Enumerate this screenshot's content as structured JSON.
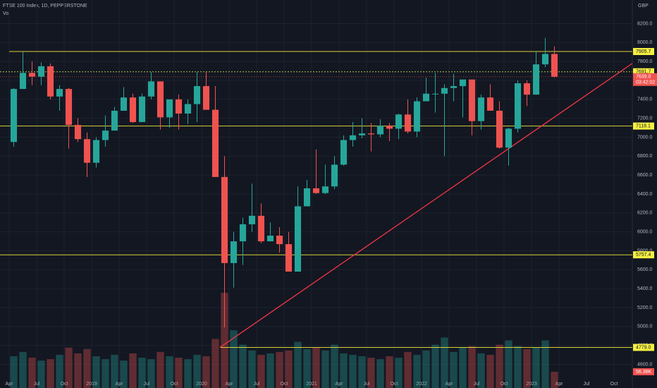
{
  "chart_data": {
    "type": "candlestick",
    "title": "FTSE 100 Index, 1D, PEPPERSTONE",
    "volume_title": "Vol",
    "currency": "GBP",
    "x": [
      "2018-04",
      "2018-05",
      "2018-06",
      "2018-07",
      "2018-08",
      "2018-09",
      "2018-10",
      "2018-11",
      "2018-12",
      "2019-01",
      "2019-02",
      "2019-03",
      "2019-04",
      "2019-05",
      "2019-06",
      "2019-07",
      "2019-08",
      "2019-09",
      "2019-10",
      "2019-11",
      "2019-12",
      "2020-01",
      "2020-02",
      "2020-03",
      "2020-04",
      "2020-05",
      "2020-06",
      "2020-07",
      "2020-08",
      "2020-09",
      "2020-10",
      "2020-11",
      "2020-12",
      "2021-01",
      "2021-02",
      "2021-03",
      "2021-04",
      "2021-05",
      "2021-06",
      "2021-07",
      "2021-08",
      "2021-09",
      "2021-10",
      "2021-11",
      "2021-12",
      "2022-01",
      "2022-02",
      "2022-03",
      "2022-04",
      "2022-05",
      "2022-06",
      "2022-07",
      "2022-08",
      "2022-09",
      "2022-10",
      "2022-11",
      "2022-12",
      "2023-01",
      "2023-02",
      "2023-03"
    ],
    "open": [
      6950,
      7510,
      7680,
      7640,
      7750,
      7430,
      7510,
      7130,
      6980,
      6730,
      6970,
      7070,
      7280,
      7420,
      7160,
      7430,
      7590,
      7210,
      7400,
      7250,
      7350,
      7540,
      7290,
      6580,
      5670,
      5900,
      6080,
      6170,
      5900,
      5960,
      5870,
      5580,
      6270,
      6460,
      6410,
      6480,
      6710,
      6970,
      7020,
      7040,
      7030,
      7120,
      7090,
      7240,
      7060,
      7380,
      7460,
      7460,
      7520,
      7540,
      7610,
      7170,
      7420,
      7280,
      6890,
      7090,
      7570,
      7450,
      7770,
      7880
    ],
    "high": [
      7520,
      7900,
      7800,
      7790,
      7780,
      7550,
      7520,
      7200,
      7050,
      7000,
      7230,
      7320,
      7530,
      7460,
      7460,
      7690,
      7590,
      7400,
      7450,
      7400,
      7690,
      7690,
      7540,
      6800,
      6000,
      6150,
      6510,
      6300,
      6100,
      6050,
      6000,
      6480,
      6550,
      6870,
      6710,
      6800,
      7020,
      7160,
      7200,
      7150,
      7190,
      7150,
      7250,
      7400,
      7420,
      7630,
      7680,
      7560,
      7670,
      7600,
      7600,
      7450,
      7560,
      7380,
      7100,
      7600,
      7600,
      7900,
      8050,
      7960
    ],
    "low": [
      6900,
      7510,
      7550,
      7550,
      7400,
      7280,
      6880,
      6950,
      6580,
      6680,
      6900,
      7080,
      7280,
      7150,
      7160,
      7400,
      7080,
      7100,
      7080,
      7140,
      7160,
      7290,
      6580,
      4990,
      5410,
      5650,
      6000,
      5880,
      5900,
      5780,
      5580,
      5580,
      6270,
      6400,
      6400,
      6450,
      6700,
      6900,
      6990,
      6850,
      7000,
      6960,
      6980,
      7040,
      7000,
      7380,
      7260,
      6800,
      7380,
      7210,
      7020,
      7080,
      7280,
      6880,
      6700,
      7050,
      7330,
      7450,
      7740,
      7630
    ],
    "close": [
      7510,
      7680,
      7640,
      7750,
      7430,
      7510,
      7130,
      6980,
      6730,
      6970,
      7070,
      7280,
      7420,
      7160,
      7430,
      7590,
      7210,
      7400,
      7250,
      7350,
      7540,
      7290,
      6580,
      5670,
      5900,
      6080,
      6170,
      5900,
      5960,
      5870,
      5580,
      6270,
      6460,
      6410,
      6480,
      6710,
      6970,
      7020,
      7040,
      7030,
      7120,
      7090,
      7240,
      7060,
      7380,
      7460,
      7460,
      7520,
      7540,
      7610,
      7170,
      7420,
      7280,
      6890,
      7090,
      7570,
      7450,
      7770,
      7880,
      7639
    ],
    "volume": [
      110,
      125,
      105,
      95,
      100,
      115,
      140,
      120,
      135,
      110,
      100,
      115,
      95,
      120,
      105,
      100,
      125,
      110,
      105,
      100,
      115,
      110,
      170,
      330,
      200,
      150,
      130,
      115,
      120,
      125,
      130,
      160,
      135,
      140,
      130,
      150,
      120,
      115,
      110,
      105,
      100,
      110,
      105,
      125,
      115,
      130,
      150,
      175,
      125,
      140,
      145,
      120,
      115,
      150,
      165,
      145,
      135,
      140,
      165,
      56.38
    ],
    "last_volume": {
      "value": 56.38,
      "label": "56.38K"
    },
    "up_color": "#26a69a",
    "down_color": "#ef5350",
    "xlim": [
      "2018-03",
      "2023-12"
    ],
    "xticks": [
      {
        "value": "2018-04",
        "label": "Apr"
      },
      {
        "value": "2018-07",
        "label": "Jul"
      },
      {
        "value": "2018-10",
        "label": "Oct"
      },
      {
        "value": "2019-01",
        "label": "2019"
      },
      {
        "value": "2019-04",
        "label": "Apr"
      },
      {
        "value": "2019-07",
        "label": "Jul"
      },
      {
        "value": "2019-10",
        "label": "Oct"
      },
      {
        "value": "2020-01",
        "label": "2020"
      },
      {
        "value": "2020-04",
        "label": "Apr"
      },
      {
        "value": "2020-07",
        "label": "Jul"
      },
      {
        "value": "2020-10",
        "label": "Oct"
      },
      {
        "value": "2021-01",
        "label": "2021"
      },
      {
        "value": "2021-04",
        "label": "Apr"
      },
      {
        "value": "2021-07",
        "label": "Jul"
      },
      {
        "value": "2021-10",
        "label": "Oct"
      },
      {
        "value": "2022-01",
        "label": "2022"
      },
      {
        "value": "2022-04",
        "label": "Apr"
      },
      {
        "value": "2022-07",
        "label": "Jul"
      },
      {
        "value": "2022-10",
        "label": "Oct"
      },
      {
        "value": "2023-01",
        "label": "2023"
      },
      {
        "value": "2023-04",
        "label": "Apr"
      },
      {
        "value": "2023-07",
        "label": "Jul"
      },
      {
        "value": "2023-10",
        "label": "Oct"
      }
    ],
    "ylim": [
      4350,
      8450
    ],
    "yticks": [
      {
        "value": 4600,
        "label": "4600.0"
      },
      {
        "value": 4800,
        "label": "4800.0"
      },
      {
        "value": 5000,
        "label": "5000.0"
      },
      {
        "value": 5200,
        "label": "5200.0"
      },
      {
        "value": 5400,
        "label": "5400.0"
      },
      {
        "value": 5600,
        "label": "5600.0"
      },
      {
        "value": 5800,
        "label": "5800.0"
      },
      {
        "value": 6000,
        "label": "6000.0"
      },
      {
        "value": 6200,
        "label": "6200.0"
      },
      {
        "value": 6400,
        "label": "6400.0"
      },
      {
        "value": 6600,
        "label": "6600.0"
      },
      {
        "value": 6800,
        "label": "6800.0"
      },
      {
        "value": 7000,
        "label": "7000.0"
      },
      {
        "value": 7200,
        "label": "7200.0"
      },
      {
        "value": 7400,
        "label": "7400.0"
      },
      {
        "value": 7600,
        "label": "7600.0"
      },
      {
        "value": 7800,
        "label": "7800.0"
      },
      {
        "value": 8000,
        "label": "8000.0"
      },
      {
        "value": 8200,
        "label": "8200.0"
      }
    ],
    "levels": [
      {
        "price": 7905.7,
        "start": "2018-04",
        "color": "#d8d236",
        "dashed": false
      },
      {
        "price": 7691.7,
        "start": "2018-03",
        "color": "#b7c23a",
        "dashed": true
      },
      {
        "price": 7118.1,
        "start": "2018-03",
        "color": "#d8d236",
        "dashed": false
      },
      {
        "price": 5757.4,
        "start": "2018-03",
        "color": "#d8d236",
        "dashed": false
      },
      {
        "price": {
          "value": 4779,
          "label": "4779.0"
        },
        "start": "2020-03",
        "color": "#d8d236",
        "dashed": false
      }
    ],
    "trendline": {
      "color": "#f23645",
      "x": [
        "2020-03",
        "2023-12"
      ],
      "y": [
        4779,
        7780
      ]
    },
    "last_price": {
      "value": 7639,
      "label": "7639.0"
    },
    "countdown": "03:42:02"
  }
}
